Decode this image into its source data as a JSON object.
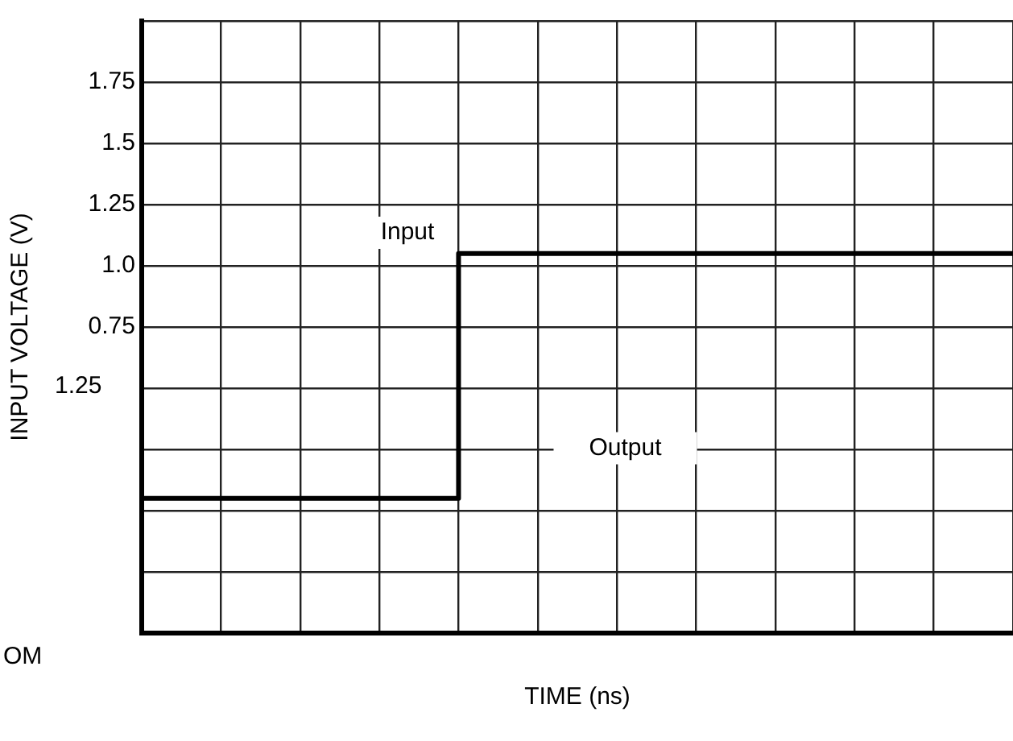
{
  "chart_data": {
    "type": "step",
    "xlabel": "TIME (ns)",
    "ylabel": "INPUT VOLTAGE (V)",
    "categories": [
      null,
      null,
      null,
      null,
      null,
      null,
      null,
      null,
      null,
      null,
      null,
      null
    ],
    "series": [
      {
        "color": "#000000",
        "values": [
          0.05,
          0.05,
          0.05,
          0.05,
          1.05,
          1.05,
          1.05,
          1.05,
          1.05,
          1.05,
          1.05,
          1.05
        ]
      }
    ],
    "ylim": [
      -0.5,
      2.0
    ],
    "yticks": [
      {
        "value": -0.5,
        "label": null
      },
      {
        "value": -0.25,
        "label": null
      },
      {
        "value": 0,
        "label": null
      },
      {
        "value": 0.25,
        "label": null
      },
      {
        "value": 0.5,
        "label": null
      },
      0.75,
      {
        "value": 1,
        "label": "1.0"
      },
      1.25,
      1.5,
      1.75,
      {
        "value": 2,
        "label": null
      }
    ],
    "annotations": [
      "Input",
      "Output",
      "OM",
      "1.25"
    ],
    "grid": true,
    "legend": false,
    "tick_labels": "y",
    "marker": "none",
    "line_style": "solid"
  }
}
